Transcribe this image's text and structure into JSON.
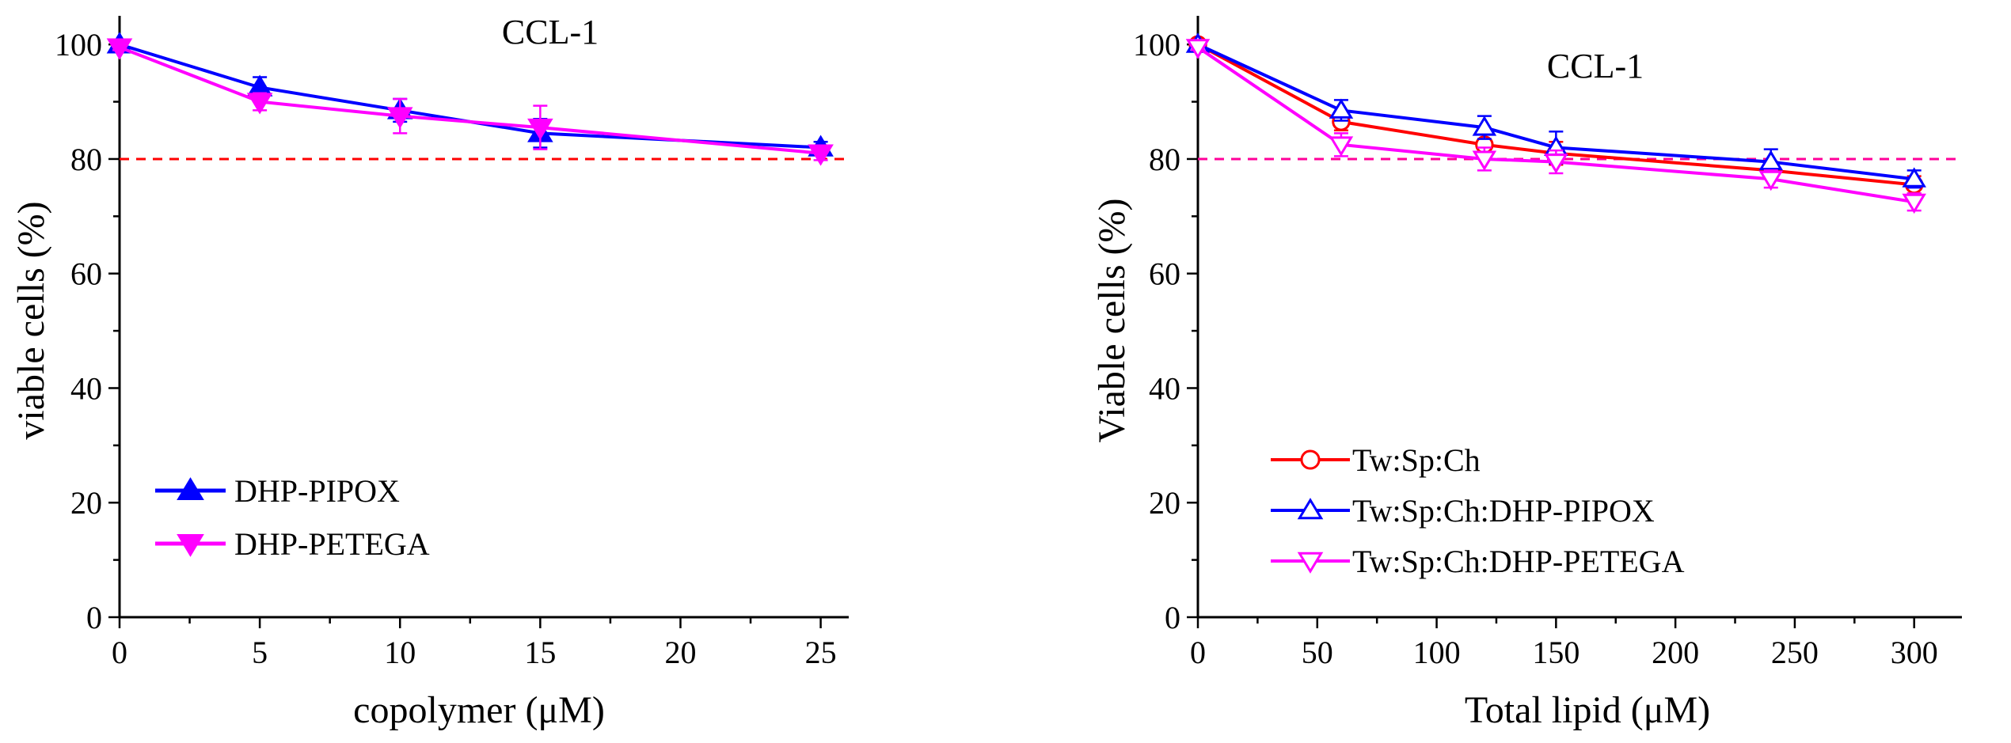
{
  "chart_data": [
    {
      "type": "line",
      "title": "CCL-1",
      "xlabel": "copolymer (μM)",
      "ylabel": "viable cells (%)",
      "xlim": [
        0,
        26
      ],
      "ylim": [
        0,
        105
      ],
      "xticks": [
        0,
        5,
        10,
        15,
        20,
        25
      ],
      "yticks": [
        0,
        20,
        40,
        60,
        80,
        100
      ],
      "reference_line": {
        "y": 80,
        "color": "#ff0000",
        "style": "dashed"
      },
      "legend_position": "bottom-left",
      "series": [
        {
          "name": "DHP-PIPOX",
          "color": "#0000ff",
          "marker": "triangle-up",
          "filled": true,
          "x": [
            0,
            5,
            10,
            15,
            25
          ],
          "values": [
            100,
            92.5,
            88.5,
            84.5,
            82
          ],
          "errors": [
            0.5,
            1.8,
            2.0,
            2.5,
            1.0
          ]
        },
        {
          "name": "DHP-PETEGA",
          "color": "#ff00ff",
          "marker": "triangle-down",
          "filled": true,
          "x": [
            0,
            5,
            10,
            15,
            25
          ],
          "values": [
            99.5,
            90,
            87.5,
            85.5,
            81
          ],
          "errors": [
            0.5,
            1.5,
            3.0,
            3.8,
            1.2
          ]
        }
      ]
    },
    {
      "type": "line",
      "title": "CCL-1",
      "xlabel": "Total lipid (μM)",
      "ylabel": "Viable cells (%)",
      "xlim": [
        0,
        320
      ],
      "ylim": [
        0,
        105
      ],
      "xticks": [
        0,
        50,
        100,
        150,
        200,
        250,
        300
      ],
      "yticks": [
        0,
        20,
        40,
        60,
        80,
        100
      ],
      "reference_line": {
        "y": 80,
        "color": "#ff0099",
        "style": "dashed"
      },
      "legend_position": "bottom-left",
      "series": [
        {
          "name": "Tw:Sp:Ch",
          "color": "#ff0000",
          "marker": "circle",
          "filled": false,
          "x": [
            0,
            60,
            120,
            150,
            240,
            300
          ],
          "values": [
            100,
            86.5,
            82.5,
            81,
            78,
            75.5
          ],
          "errors": [
            0.5,
            1.5,
            2.0,
            2.0,
            1.5,
            1.5
          ]
        },
        {
          "name": "Tw:Sp:Ch:DHP-PIPOX",
          "color": "#0000ff",
          "marker": "triangle-up",
          "filled": false,
          "x": [
            0,
            60,
            120,
            150,
            240,
            300
          ],
          "values": [
            100,
            88.5,
            85.5,
            82,
            79.5,
            76.5
          ],
          "errors": [
            0.5,
            1.8,
            2.0,
            2.8,
            2.2,
            1.5
          ]
        },
        {
          "name": "Tw:Sp:Ch:DHP-PETEGA",
          "color": "#ff00ff",
          "marker": "triangle-down",
          "filled": false,
          "x": [
            0,
            60,
            120,
            150,
            240,
            300
          ],
          "values": [
            99.5,
            82.5,
            80,
            79.5,
            76.5,
            72.5
          ],
          "errors": [
            0.5,
            2.0,
            2.0,
            2.0,
            1.5,
            1.5
          ]
        }
      ]
    }
  ]
}
